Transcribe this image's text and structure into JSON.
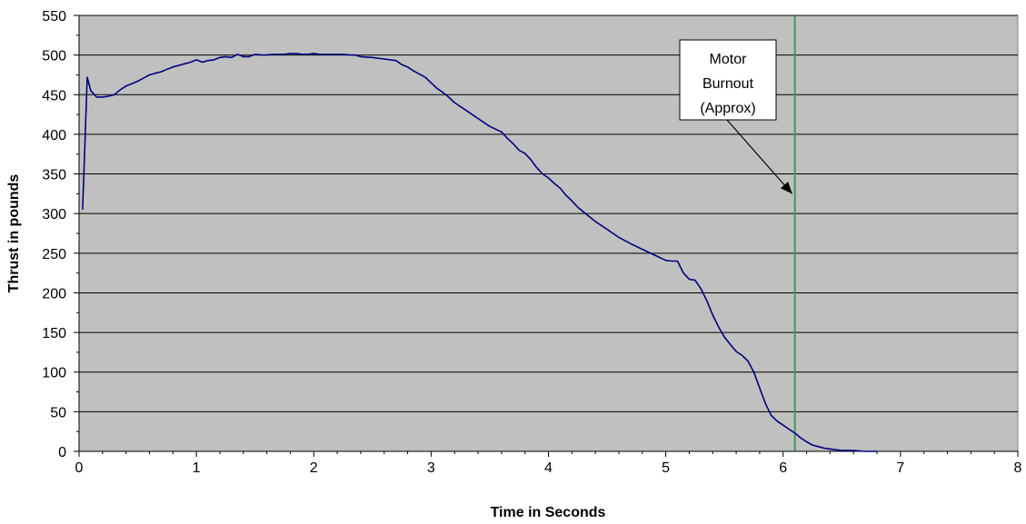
{
  "chart_data": {
    "type": "line",
    "title": "",
    "xlabel": "Time in Seconds",
    "ylabel": "Thrust in pounds",
    "xlim": [
      0,
      8
    ],
    "ylim": [
      0,
      550
    ],
    "x_ticks": [
      0,
      1,
      2,
      3,
      4,
      5,
      6,
      7,
      8
    ],
    "y_ticks": [
      0,
      50,
      100,
      150,
      200,
      250,
      300,
      350,
      400,
      450,
      500,
      550
    ],
    "grid": "horizontal major gridlines",
    "legend": "none",
    "plot_background": "#c0c0c0",
    "series": [
      {
        "color": "#000080",
        "x": [
          0.03,
          0.07,
          0.1,
          0.15,
          0.2,
          0.25,
          0.3,
          0.35,
          0.4,
          0.45,
          0.5,
          0.55,
          0.6,
          0.65,
          0.7,
          0.75,
          0.8,
          0.85,
          0.9,
          0.95,
          1.0,
          1.05,
          1.1,
          1.15,
          1.2,
          1.25,
          1.3,
          1.35,
          1.4,
          1.45,
          1.5,
          1.55,
          1.6,
          1.65,
          1.7,
          1.75,
          1.8,
          1.85,
          1.9,
          1.95,
          2.0,
          2.05,
          2.1,
          2.15,
          2.2,
          2.25,
          2.3,
          2.35,
          2.4,
          2.5,
          2.6,
          2.7,
          2.75,
          2.8,
          2.85,
          2.9,
          2.95,
          3.0,
          3.05,
          3.1,
          3.15,
          3.2,
          3.25,
          3.3,
          3.35,
          3.4,
          3.5,
          3.6,
          3.65,
          3.7,
          3.75,
          3.8,
          3.85,
          3.9,
          3.95,
          4.0,
          4.05,
          4.1,
          4.15,
          4.2,
          4.25,
          4.3,
          4.35,
          4.4,
          4.5,
          4.6,
          4.7,
          4.8,
          4.9,
          5.0,
          5.05,
          5.1,
          5.15,
          5.2,
          5.25,
          5.3,
          5.35,
          5.4,
          5.45,
          5.5,
          5.55,
          5.6,
          5.65,
          5.7,
          5.75,
          5.8,
          5.85,
          5.9,
          5.95,
          6.0,
          6.05,
          6.1,
          6.15,
          6.2,
          6.25,
          6.3,
          6.35,
          6.4,
          6.45,
          6.5,
          6.6,
          6.7,
          6.8
        ],
        "y": [
          305,
          472,
          455,
          447,
          447,
          448,
          450,
          456,
          461,
          464,
          467,
          471,
          475,
          477,
          479,
          482,
          485,
          487,
          489,
          491,
          494,
          491,
          493,
          494,
          497,
          498,
          497,
          501,
          498,
          498,
          501,
          500,
          500,
          501,
          501,
          501,
          502,
          502,
          501,
          501,
          502,
          501,
          501,
          501,
          501,
          501,
          500,
          500,
          498,
          497,
          495,
          493,
          488,
          485,
          480,
          476,
          472,
          465,
          458,
          453,
          447,
          440,
          435,
          430,
          425,
          420,
          410,
          403,
          395,
          388,
          380,
          376,
          368,
          358,
          350,
          345,
          338,
          332,
          323,
          316,
          308,
          302,
          296,
          290,
          280,
          270,
          262,
          255,
          248,
          241,
          240,
          240,
          225,
          217,
          216,
          205,
          190,
          172,
          157,
          144,
          135,
          126,
          121,
          114,
          100,
          80,
          60,
          45,
          38,
          33,
          28,
          23,
          17,
          12,
          8,
          6,
          4,
          3,
          2,
          1,
          1,
          0,
          0
        ]
      }
    ],
    "vertical_marker": {
      "x": 6.1,
      "color": "#3c9a5f"
    },
    "annotation": {
      "lines": [
        "Motor",
        "Burnout",
        "(Approx)"
      ],
      "arrow_target": [
        6.1,
        325
      ]
    }
  }
}
